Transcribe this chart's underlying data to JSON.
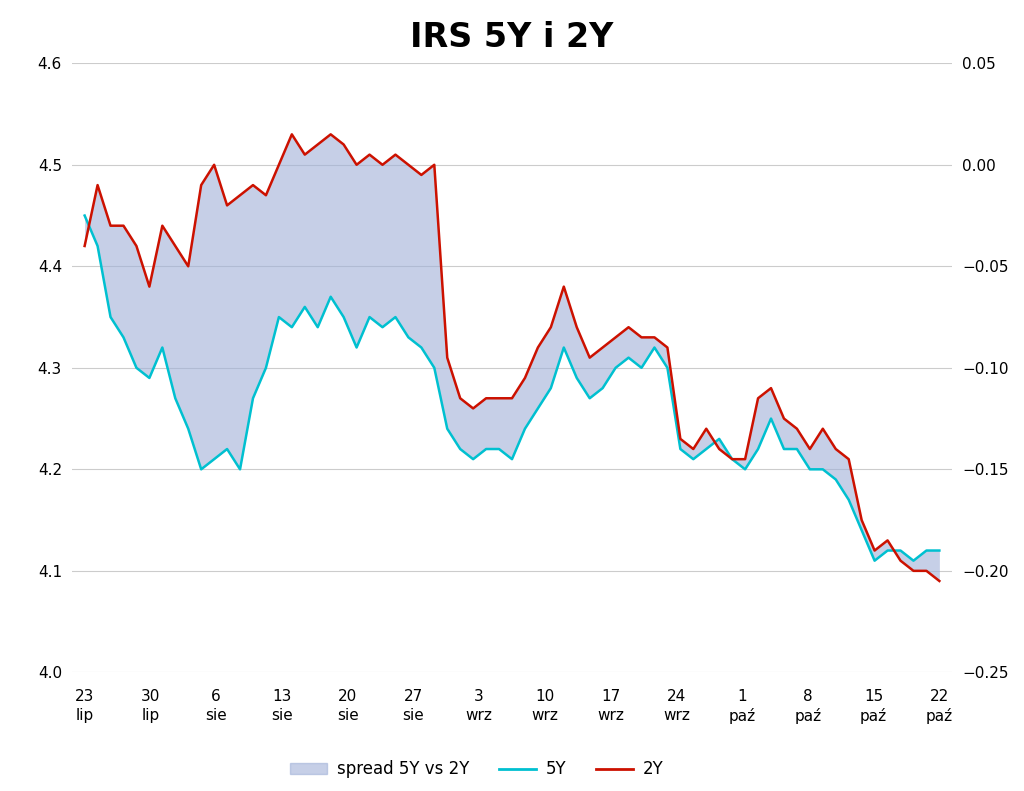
{
  "title": "IRS 5Y i 2Y",
  "title_fontsize": 24,
  "title_fontweight": "bold",
  "background_color": "#ffffff",
  "grid_color": "#cccccc",
  "left_ylim": [
    4.0,
    4.6
  ],
  "right_ylim": [
    -0.25,
    0.05
  ],
  "left_yticks": [
    4.0,
    4.1,
    4.2,
    4.3,
    4.4,
    4.5,
    4.6
  ],
  "right_yticks": [
    -0.25,
    -0.2,
    -0.15,
    -0.1,
    -0.05,
    0.0,
    0.05
  ],
  "xtick_labels_top": [
    "23",
    "30",
    "6",
    "13",
    "20",
    "27",
    "3",
    "10",
    "17",
    "24",
    "1",
    "8",
    "15",
    "22"
  ],
  "xtick_labels_bot": [
    "lip",
    "lip",
    "sie",
    "sie",
    "sie",
    "sie",
    "wrz",
    "wrz",
    "wrz",
    "wrz",
    "paź",
    "paź",
    "paź",
    "paź"
  ],
  "line_5y_color": "#00c0d0",
  "line_2y_color": "#cc1100",
  "spread_fill_color": "#a0b0d8",
  "spread_fill_alpha": 0.6,
  "line_width": 1.8,
  "x_values": [
    0,
    1,
    2,
    3,
    4,
    5,
    6,
    7,
    8,
    9,
    10,
    11,
    12,
    13,
    14,
    15,
    16,
    17,
    18,
    19,
    20,
    21,
    22,
    23,
    24,
    25,
    26,
    27,
    28,
    29,
    30,
    31,
    32,
    33,
    34,
    35,
    36,
    37,
    38,
    39,
    40,
    41,
    42,
    43,
    44,
    45,
    46,
    47,
    48,
    49,
    50,
    51,
    52,
    53,
    54,
    55,
    56,
    57,
    58,
    59,
    60,
    61,
    62,
    63,
    64,
    65,
    66
  ],
  "irs_5y": [
    4.45,
    4.42,
    4.35,
    4.33,
    4.3,
    4.29,
    4.32,
    4.27,
    4.24,
    4.2,
    4.21,
    4.22,
    4.2,
    4.27,
    4.3,
    4.35,
    4.34,
    4.36,
    4.34,
    4.37,
    4.35,
    4.32,
    4.35,
    4.34,
    4.35,
    4.33,
    4.32,
    4.3,
    4.24,
    4.22,
    4.21,
    4.22,
    4.22,
    4.21,
    4.24,
    4.26,
    4.28,
    4.32,
    4.29,
    4.27,
    4.28,
    4.3,
    4.31,
    4.3,
    4.32,
    4.3,
    4.22,
    4.21,
    4.22,
    4.23,
    4.21,
    4.2,
    4.22,
    4.25,
    4.22,
    4.22,
    4.2,
    4.2,
    4.19,
    4.17,
    4.14,
    4.11,
    4.12,
    4.12,
    4.11,
    4.12,
    4.12
  ],
  "irs_2y": [
    4.42,
    4.48,
    4.44,
    4.44,
    4.42,
    4.38,
    4.44,
    4.42,
    4.4,
    4.48,
    4.5,
    4.46,
    4.47,
    4.48,
    4.47,
    4.5,
    4.53,
    4.51,
    4.52,
    4.53,
    4.52,
    4.5,
    4.51,
    4.5,
    4.51,
    4.5,
    4.49,
    4.5,
    4.31,
    4.27,
    4.26,
    4.27,
    4.27,
    4.27,
    4.29,
    4.32,
    4.34,
    4.38,
    4.34,
    4.31,
    4.32,
    4.33,
    4.34,
    4.33,
    4.33,
    4.32,
    4.23,
    4.22,
    4.24,
    4.22,
    4.21,
    4.21,
    4.27,
    4.28,
    4.25,
    4.24,
    4.22,
    4.24,
    4.22,
    4.21,
    4.15,
    4.12,
    4.13,
    4.11,
    4.1,
    4.1,
    4.09
  ]
}
